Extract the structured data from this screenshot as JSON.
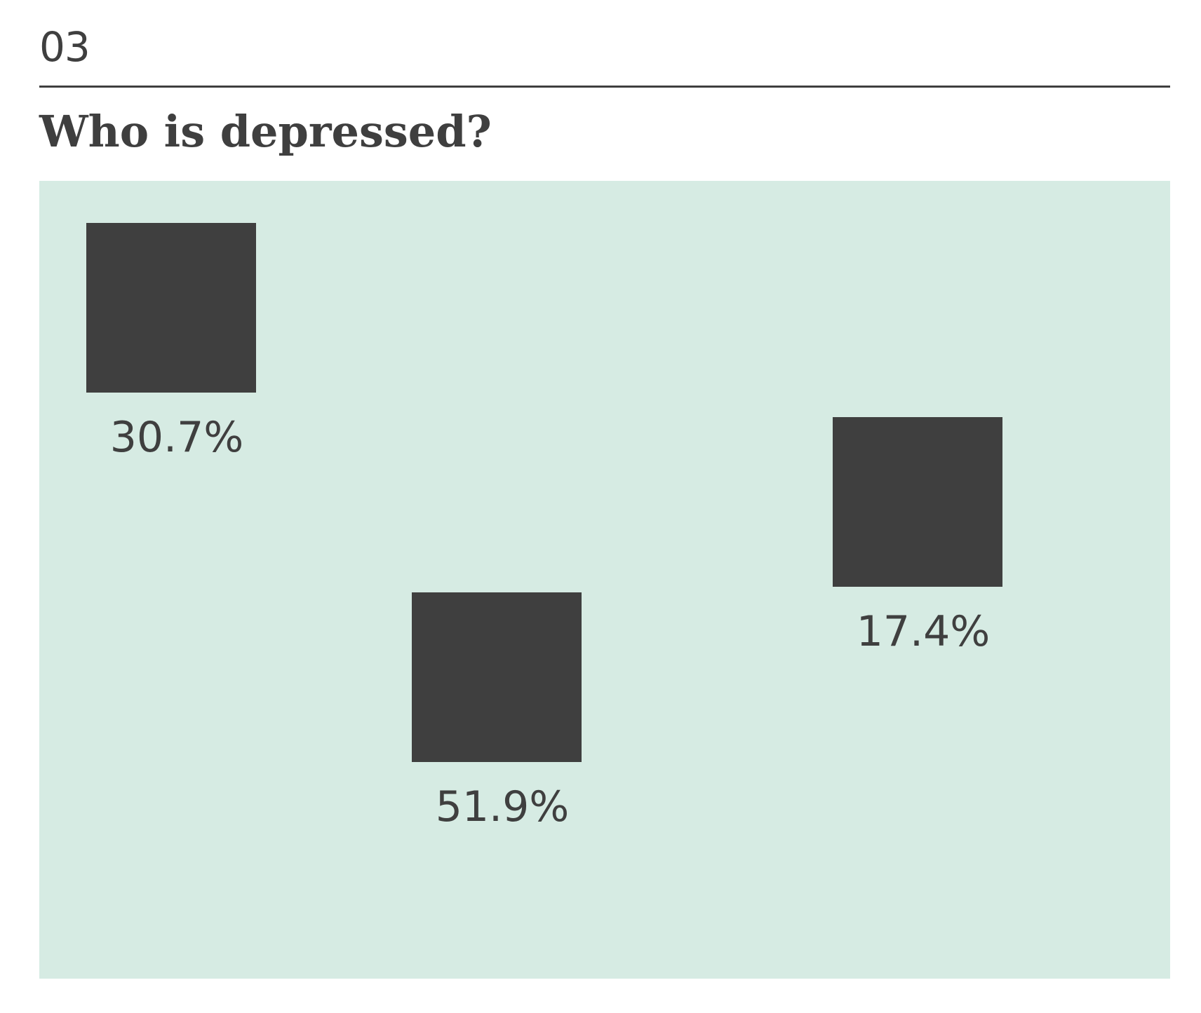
{
  "header": {
    "section_number": "03",
    "title": "Who is depressed?"
  },
  "colors": {
    "panel_background": "#d6ebe3",
    "mark": "#3f3f3f",
    "text": "#3f3f3f"
  },
  "chart_data": {
    "type": "scatter",
    "title": "Who is depressed?",
    "values": [
      30.7,
      51.9,
      17.4
    ],
    "labels": [
      "30.7%",
      "51.9%",
      "17.4%"
    ],
    "grid": false,
    "legend": "none"
  }
}
